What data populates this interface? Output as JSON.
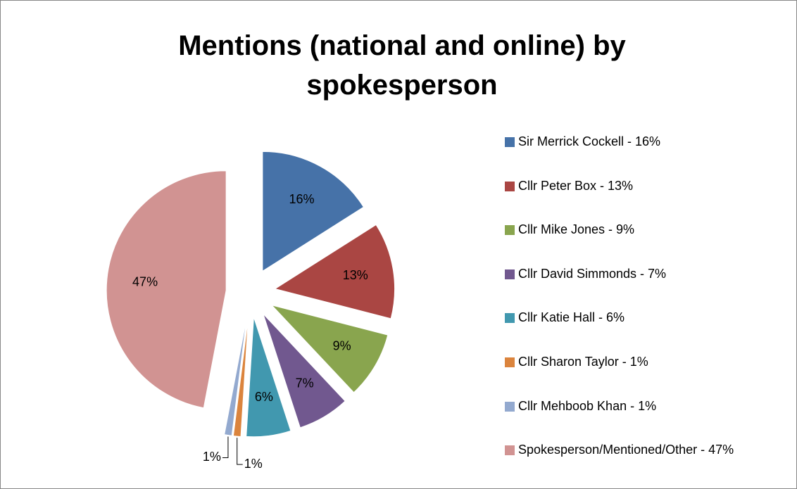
{
  "chart_data": {
    "type": "pie",
    "title": "Mentions (national and online) by spokesperson",
    "categories": [
      "Sir Merrick Cockell - 16%",
      "Cllr Peter Box - 13%",
      "Cllr Mike Jones - 9%",
      "Cllr David Simmonds - 7%",
      "Cllr Katie Hall - 6%",
      "Cllr Sharon Taylor - 1%",
      "Cllr Mehboob Khan - 1%",
      "Spokesperson/Mentioned/Other - 47%"
    ],
    "values": [
      16,
      13,
      9,
      7,
      6,
      1,
      1,
      47
    ],
    "value_labels": [
      "16%",
      "13%",
      "9%",
      "7%",
      "6%",
      "1%",
      "1%",
      "47%"
    ],
    "colors": [
      "#4672a8",
      "#aa4643",
      "#89a54e",
      "#71588f",
      "#4198af",
      "#db843d",
      "#93a9cf",
      "#d19392"
    ],
    "legend": "right"
  }
}
